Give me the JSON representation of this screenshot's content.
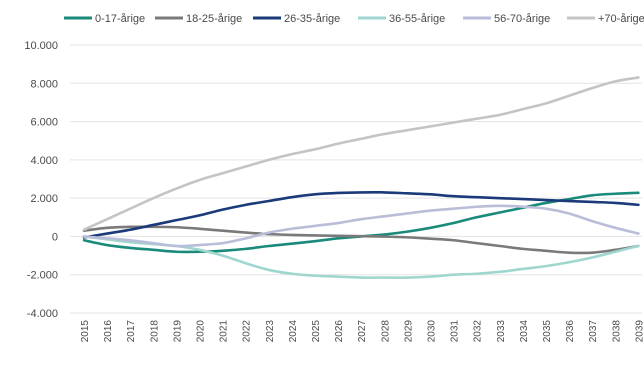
{
  "chart_data": {
    "type": "line",
    "title": "",
    "xlabel": "",
    "ylabel": "",
    "ylim": [
      -4000,
      10000
    ],
    "y_ticks": [
      "10.000",
      "8.000",
      "6.000",
      "4.000",
      "2.000",
      "0",
      "-2.000",
      "-4.000"
    ],
    "y_tick_values": [
      10000,
      8000,
      6000,
      4000,
      2000,
      0,
      -2000,
      -4000
    ],
    "grid": "horizontal",
    "legend_position": "top",
    "x": [
      "2015",
      "2016",
      "2017",
      "2018",
      "2019",
      "2020",
      "2021",
      "2022",
      "2023",
      "2024",
      "2025",
      "2026",
      "2027",
      "2028",
      "2029",
      "2030",
      "2031",
      "2032",
      "2033",
      "2034",
      "2035",
      "2036",
      "2037",
      "2038",
      "2039"
    ],
    "series": [
      {
        "name": "0-17-årige",
        "color": "#1a8a7a",
        "values": [
          -200,
          -450,
          -600,
          -700,
          -800,
          -800,
          -750,
          -650,
          -500,
          -380,
          -250,
          -100,
          0,
          100,
          250,
          450,
          700,
          1000,
          1250,
          1500,
          1750,
          1950,
          2150,
          2230,
          2280
        ]
      },
      {
        "name": "18-25-årige",
        "color": "#7a7a7a",
        "values": [
          300,
          450,
          500,
          500,
          480,
          400,
          300,
          200,
          120,
          80,
          50,
          30,
          10,
          -10,
          -50,
          -120,
          -200,
          -350,
          -500,
          -650,
          -750,
          -850,
          -850,
          -700,
          -500
        ]
      },
      {
        "name": "26-35-årige",
        "color": "#1b3a7a",
        "values": [
          -50,
          150,
          350,
          600,
          850,
          1100,
          1400,
          1650,
          1850,
          2050,
          2200,
          2270,
          2300,
          2300,
          2250,
          2200,
          2100,
          2050,
          2000,
          1950,
          1900,
          1850,
          1800,
          1750,
          1650
        ]
      },
      {
        "name": "36-55-årige",
        "color": "#9fd6d0",
        "values": [
          0,
          -150,
          -300,
          -400,
          -500,
          -700,
          -1000,
          -1400,
          -1750,
          -1950,
          -2050,
          -2100,
          -2150,
          -2150,
          -2150,
          -2100,
          -2000,
          -1950,
          -1850,
          -1700,
          -1550,
          -1350,
          -1100,
          -800,
          -500
        ]
      },
      {
        "name": "56-70-årige",
        "color": "#b9bdd8",
        "values": [
          0,
          -100,
          -200,
          -350,
          -500,
          -450,
          -350,
          -100,
          200,
          400,
          550,
          700,
          900,
          1050,
          1200,
          1350,
          1450,
          1550,
          1600,
          1550,
          1450,
          1200,
          800,
          450,
          150
        ]
      },
      {
        "name": "+70-årige",
        "color": "#c4c4c4",
        "values": [
          350,
          900,
          1450,
          2000,
          2500,
          2950,
          3300,
          3650,
          4000,
          4300,
          4550,
          4850,
          5100,
          5350,
          5550,
          5750,
          5950,
          6150,
          6350,
          6650,
          6950,
          7350,
          7750,
          8100,
          8300
        ]
      }
    ]
  }
}
